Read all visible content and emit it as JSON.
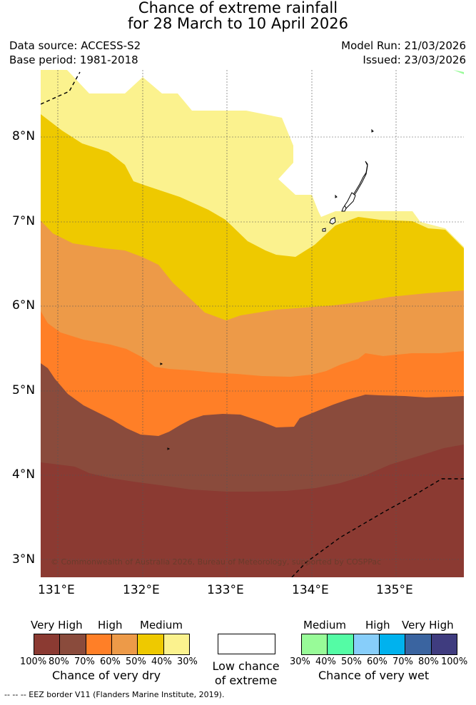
{
  "title": {
    "line1": "Chance of extreme rainfall",
    "line2": "for 28 March to 10 April 2026"
  },
  "meta": {
    "data_source": "Data source: ACCESS-S2",
    "base_period": "Base period: 1981-2018",
    "model_run": "Model Run: 21/03/2026",
    "issued": "Issued: 23/03/2026"
  },
  "map": {
    "lat_ticks": [
      "8°N",
      "7°N",
      "6°N",
      "5°N",
      "4°N",
      "3°N"
    ],
    "lon_ticks": [
      "131°E",
      "132°E",
      "133°E",
      "134°E",
      "135°E"
    ],
    "copyright": "© Commonwealth of Australia 2026, Bureau of Meteorology, supported by COSPPac",
    "zones": [
      {
        "name": "dry-very-high-dark",
        "category": "100%-80% very dry",
        "color": "#8B3A32"
      },
      {
        "name": "dry-very-high-light",
        "category": "80%-70% very dry",
        "color": "#8A4B3C"
      },
      {
        "name": "dry-high-dark",
        "category": "70%-60% very dry",
        "color": "#FF7F27"
      },
      {
        "name": "dry-high-light",
        "category": "60%-50% very dry",
        "color": "#ED9A48"
      },
      {
        "name": "dry-medium-dark",
        "category": "50%-40% very dry",
        "color": "#EEC900"
      },
      {
        "name": "dry-medium-light",
        "category": "40%-30% very dry",
        "color": "#FBF28E"
      }
    ],
    "eez_line_color": "#000000"
  },
  "legend_dry": {
    "cat_very_high": "Very High",
    "cat_high": "High",
    "cat_medium": "Medium",
    "colors": [
      "#8B3A32",
      "#8A4B3C",
      "#FF7F27",
      "#ED9A48",
      "#EEC900",
      "#FBF28E"
    ],
    "pcts": [
      "100%",
      "80%",
      "70%",
      "60%",
      "50%",
      "40%",
      "30%"
    ],
    "title": "Chance of very dry"
  },
  "legend_low": {
    "line1": "Low chance",
    "line2": "of extreme",
    "color": "#FFFFFF"
  },
  "legend_wet": {
    "cat_medium": "Medium",
    "cat_high": "High",
    "cat_very_high": "Very High",
    "colors": [
      "#98FB98",
      "#54FCA5",
      "#87CEFA",
      "#00B2EE",
      "#3A64A0",
      "#3F3C7F"
    ],
    "pcts": [
      "30%",
      "40%",
      "50%",
      "60%",
      "70%",
      "80%",
      "100%"
    ],
    "title": "Chance of very wet"
  },
  "footer": {
    "eez_note": "--  --  -- EEZ border V11 (Flanders Marine Institute, 2019)."
  }
}
